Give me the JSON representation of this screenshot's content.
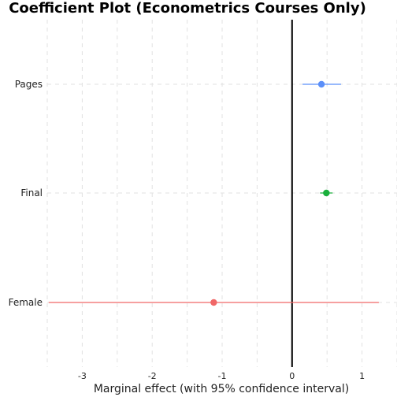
{
  "chart_data": {
    "type": "scatter",
    "title": "Coefficient Plot (Econometrics Courses Only)",
    "xlabel": "Marginal effect (with 95% confidence interval)",
    "ylabel": "",
    "xlim": [
      -3.5,
      1.5
    ],
    "x_ticks": [
      -3,
      -2,
      -1,
      0,
      1
    ],
    "x_tick_labels": [
      "-3",
      "-2",
      "-1",
      "0",
      "1"
    ],
    "grid": true,
    "legend": "none",
    "reference_line": 0,
    "categories": [
      "Pages",
      "Final",
      "Female"
    ],
    "points": [
      {
        "term": "Pages",
        "estimate": 0.42,
        "ci_low": 0.15,
        "ci_high": 0.7,
        "color": "#5b8ff9"
      },
      {
        "term": "Final",
        "estimate": 0.49,
        "ci_low": 0.4,
        "ci_high": 0.58,
        "color": "#1aaf3c"
      },
      {
        "term": "Female",
        "estimate": -1.12,
        "ci_low": -3.48,
        "ci_high": 1.24,
        "color": "#f06767"
      }
    ]
  }
}
